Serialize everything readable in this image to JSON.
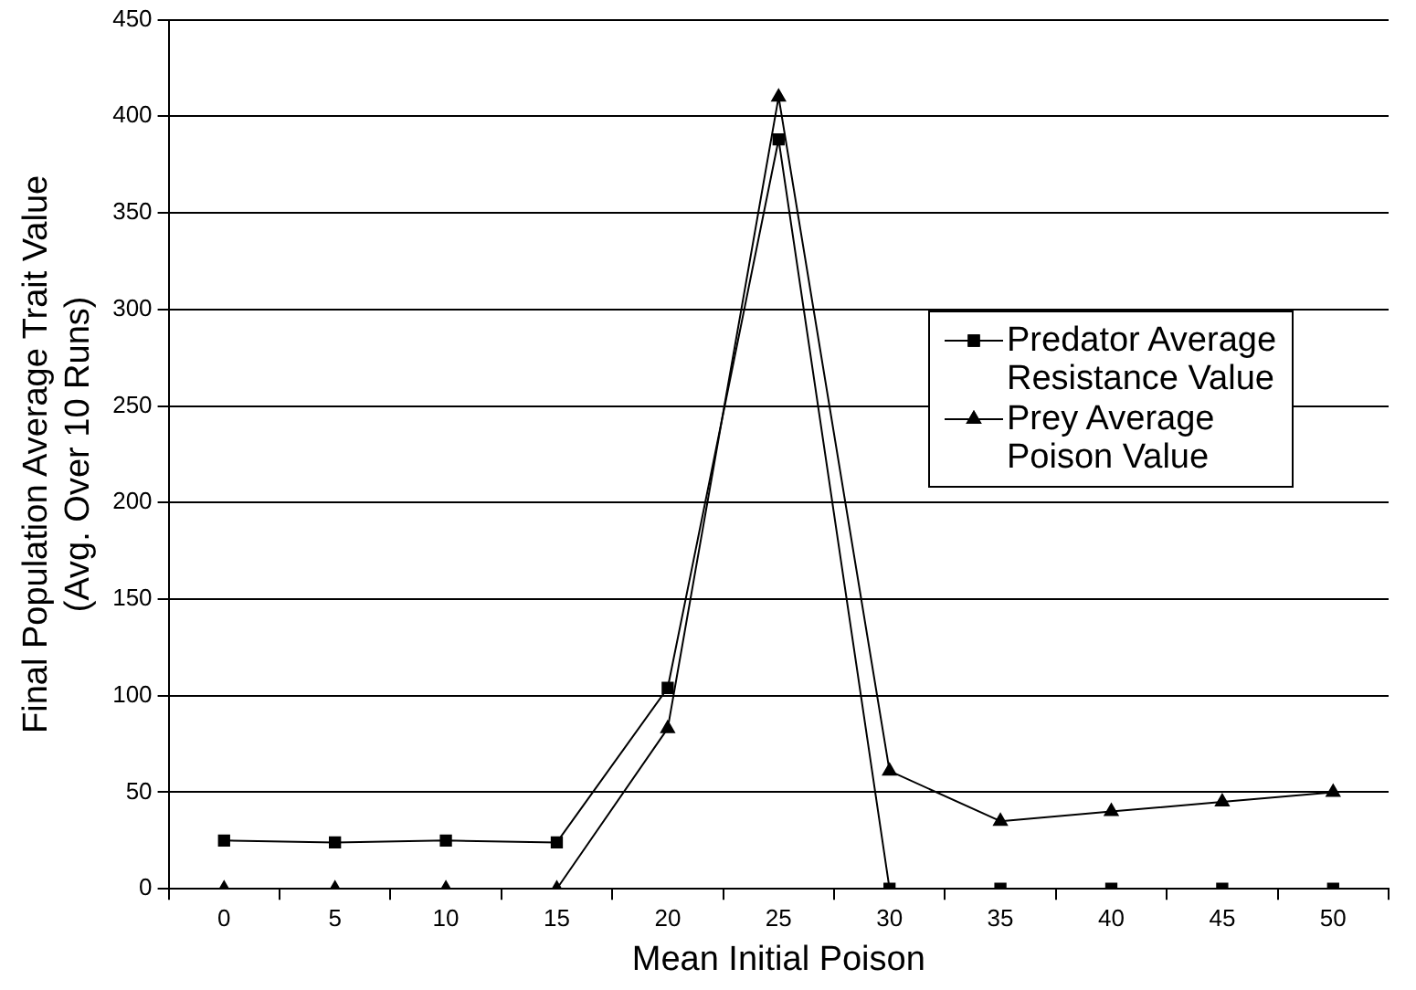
{
  "chart_data": {
    "type": "line",
    "xlabel": "Mean Initial Poison",
    "ylabel": "Final Population Average Trait Value\n(Avg. Over 10 Runs)",
    "categories": [
      "0",
      "5",
      "10",
      "15",
      "20",
      "25",
      "30",
      "35",
      "40",
      "45",
      "50"
    ],
    "ylim": [
      0,
      450
    ],
    "yticks": [
      0,
      50,
      100,
      150,
      200,
      250,
      300,
      350,
      400,
      450
    ],
    "grid": "y",
    "legend": "right",
    "line_style": "solid",
    "series": [
      {
        "name": "Predator Average Resistance Value",
        "color": "#000000",
        "marker": "square",
        "values": [
          25,
          24,
          25,
          24,
          104,
          388,
          0,
          0,
          0,
          0,
          0
        ]
      },
      {
        "name": "Prey Average Poison Value",
        "color": "#000000",
        "marker": "triangle",
        "values": [
          0,
          0,
          0,
          0,
          83,
          410,
          61,
          35,
          40,
          45,
          50
        ]
      }
    ]
  }
}
